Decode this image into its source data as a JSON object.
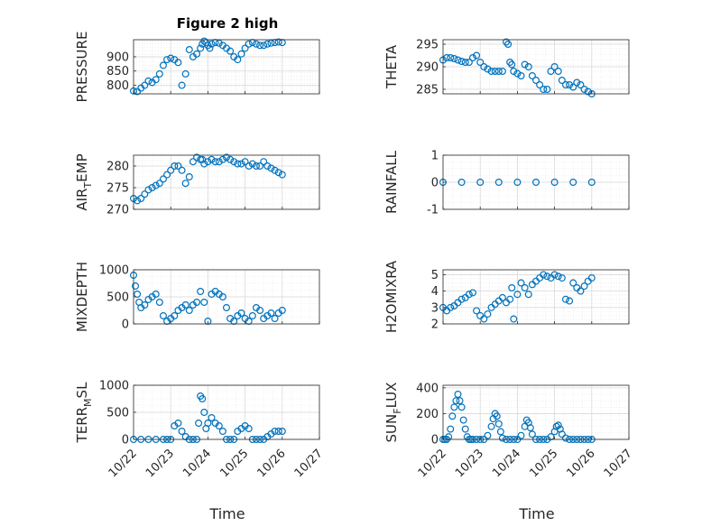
{
  "figure_title": "Figure 2 high",
  "colors": {
    "marker": "#0072BD",
    "axis": "#262626",
    "grid": "#d9d9d9",
    "minor_grid": "#e6e6e6"
  },
  "x_ticks": [
    "10/22",
    "10/23",
    "10/24",
    "10/25",
    "10/26",
    "10/27"
  ],
  "x_label": "Time",
  "chart_data": [
    {
      "type": "scatter",
      "ylabel": "PRESSURE",
      "ylim": [
        770,
        960
      ],
      "yticks": [
        800,
        850,
        900
      ],
      "grid": true,
      "x": [
        0,
        0.1,
        0.2,
        0.3,
        0.4,
        0.5,
        0.6,
        0.7,
        0.8,
        0.9,
        1,
        1.1,
        1.2,
        1.3,
        1.4,
        1.5,
        1.6,
        1.7,
        1.8,
        1.85,
        1.9,
        1.95,
        2,
        2.05,
        2.1,
        2.2,
        2.3,
        2.4,
        2.5,
        2.6,
        2.7,
        2.8,
        2.9,
        3,
        3.1,
        3.2,
        3.3,
        3.4,
        3.5,
        3.6,
        3.7,
        3.8,
        3.9,
        4
      ],
      "values": [
        780,
        778,
        790,
        800,
        815,
        810,
        820,
        840,
        870,
        890,
        895,
        890,
        880,
        800,
        840,
        925,
        900,
        910,
        930,
        945,
        955,
        950,
        940,
        930,
        945,
        950,
        948,
        940,
        930,
        920,
        900,
        890,
        910,
        930,
        945,
        950,
        945,
        940,
        940,
        945,
        948,
        950,
        952,
        950
      ]
    },
    {
      "type": "scatter",
      "ylabel": "THETA",
      "ylim": [
        284,
        296
      ],
      "yticks": [
        285,
        290,
        295
      ],
      "grid": true,
      "x": [
        0,
        0.1,
        0.2,
        0.3,
        0.4,
        0.5,
        0.6,
        0.7,
        0.8,
        0.9,
        1,
        1.1,
        1.2,
        1.3,
        1.4,
        1.5,
        1.6,
        1.7,
        1.75,
        1.8,
        1.85,
        1.9,
        2,
        2.1,
        2.2,
        2.3,
        2.4,
        2.5,
        2.6,
        2.7,
        2.8,
        2.9,
        3,
        3.1,
        3.2,
        3.3,
        3.4,
        3.5,
        3.6,
        3.7,
        3.8,
        3.9,
        4
      ],
      "values": [
        291.5,
        292,
        292,
        291.8,
        291.5,
        291.2,
        291,
        291,
        292,
        292.5,
        291,
        290,
        289.5,
        289,
        289,
        289,
        289,
        295.5,
        295,
        291,
        290.5,
        289,
        288.5,
        288,
        290.5,
        290,
        288,
        287,
        286,
        285,
        285,
        289,
        290,
        289,
        287,
        286,
        286,
        285.5,
        286.5,
        286,
        285,
        284.5,
        284
      ]
    },
    {
      "type": "scatter",
      "ylabel": "AIR_TEMP",
      "ylim": [
        270,
        282.5
      ],
      "yticks": [
        270,
        275,
        280
      ],
      "grid": true,
      "x": [
        0,
        0.1,
        0.2,
        0.3,
        0.4,
        0.5,
        0.6,
        0.7,
        0.8,
        0.9,
        1,
        1.1,
        1.2,
        1.3,
        1.4,
        1.5,
        1.6,
        1.7,
        1.8,
        1.85,
        1.9,
        2,
        2.1,
        2.2,
        2.3,
        2.4,
        2.5,
        2.6,
        2.7,
        2.8,
        2.9,
        3,
        3.1,
        3.2,
        3.3,
        3.4,
        3.5,
        3.6,
        3.7,
        3.8,
        3.9,
        4
      ],
      "values": [
        272.5,
        272,
        272.5,
        273.5,
        274.5,
        275,
        275.5,
        276,
        277,
        278,
        279,
        280,
        280,
        279,
        276,
        277.5,
        281,
        282,
        281.5,
        281.5,
        280.5,
        281,
        281.5,
        281,
        281,
        281.5,
        282,
        281.5,
        281,
        280.5,
        280.5,
        281,
        280,
        280.5,
        280,
        280,
        281,
        280,
        279.5,
        279,
        278.5,
        278
      ]
    },
    {
      "type": "scatter",
      "ylabel": "RAINFALL",
      "ylim": [
        -1,
        1
      ],
      "yticks": [
        -1,
        0,
        1
      ],
      "grid": true,
      "x": [
        0,
        0.5,
        1,
        1.5,
        2,
        2.5,
        3,
        3.5,
        4
      ],
      "values": [
        0,
        0,
        0,
        0,
        0,
        0,
        0,
        0,
        0
      ]
    },
    {
      "type": "scatter",
      "ylabel": "MIXDEPTH",
      "ylim": [
        0,
        1000
      ],
      "yticks": [
        0,
        500,
        1000
      ],
      "grid": true,
      "x": [
        0,
        0.05,
        0.1,
        0.15,
        0.2,
        0.3,
        0.4,
        0.5,
        0.6,
        0.7,
        0.8,
        0.9,
        1,
        1.1,
        1.2,
        1.3,
        1.4,
        1.5,
        1.6,
        1.7,
        1.8,
        1.9,
        2,
        2.1,
        2.2,
        2.3,
        2.4,
        2.5,
        2.6,
        2.7,
        2.8,
        2.9,
        3,
        3.1,
        3.2,
        3.3,
        3.4,
        3.5,
        3.6,
        3.7,
        3.8,
        3.9,
        4
      ],
      "values": [
        900,
        700,
        550,
        400,
        300,
        350,
        450,
        500,
        550,
        400,
        150,
        50,
        100,
        150,
        250,
        300,
        350,
        250,
        350,
        400,
        600,
        400,
        50,
        550,
        600,
        550,
        500,
        300,
        100,
        50,
        150,
        200,
        100,
        50,
        150,
        300,
        250,
        100,
        150,
        200,
        100,
        200,
        250
      ]
    },
    {
      "type": "scatter",
      "ylabel": "H2OMIXRA",
      "ylim": [
        2,
        5.3
      ],
      "yticks": [
        2,
        3,
        4,
        5
      ],
      "grid": true,
      "x": [
        0,
        0.1,
        0.2,
        0.3,
        0.4,
        0.5,
        0.6,
        0.7,
        0.8,
        0.9,
        1,
        1.1,
        1.2,
        1.3,
        1.4,
        1.5,
        1.6,
        1.7,
        1.8,
        1.85,
        1.9,
        2,
        2.1,
        2.2,
        2.3,
        2.4,
        2.5,
        2.6,
        2.7,
        2.8,
        2.9,
        3,
        3.1,
        3.2,
        3.3,
        3.4,
        3.5,
        3.6,
        3.7,
        3.8,
        3.9,
        4
      ],
      "values": [
        3,
        2.8,
        3,
        3.1,
        3.3,
        3.5,
        3.6,
        3.8,
        3.9,
        2.8,
        2.5,
        2.3,
        2.6,
        3,
        3.2,
        3.4,
        3.6,
        3.3,
        3.5,
        4.2,
        2.3,
        3.8,
        4.5,
        4.2,
        3.8,
        4.4,
        4.6,
        4.8,
        5,
        4.9,
        4.8,
        5,
        4.9,
        4.8,
        3.5,
        3.4,
        4.5,
        4.2,
        4,
        4.3,
        4.6,
        4.8
      ]
    },
    {
      "type": "scatter",
      "ylabel": "TERR_MSL",
      "ylim": [
        0,
        1000
      ],
      "yticks": [
        0,
        500,
        1000
      ],
      "grid": true,
      "x": [
        0,
        0.2,
        0.4,
        0.6,
        0.8,
        0.9,
        1,
        1.1,
        1.2,
        1.3,
        1.4,
        1.5,
        1.6,
        1.7,
        1.75,
        1.8,
        1.85,
        1.9,
        1.95,
        2,
        2.1,
        2.2,
        2.3,
        2.4,
        2.5,
        2.6,
        2.7,
        2.8,
        2.9,
        3,
        3.1,
        3.2,
        3.3,
        3.4,
        3.5,
        3.6,
        3.7,
        3.8,
        3.9,
        4
      ],
      "values": [
        0,
        0,
        0,
        0,
        0,
        0,
        0,
        250,
        300,
        150,
        50,
        0,
        0,
        0,
        300,
        800,
        750,
        500,
        200,
        300,
        400,
        300,
        250,
        150,
        0,
        0,
        0,
        150,
        200,
        250,
        200,
        0,
        0,
        0,
        0,
        50,
        100,
        150,
        150,
        150
      ]
    },
    {
      "type": "scatter",
      "ylabel": "SUN_FLUX",
      "ylim": [
        0,
        420
      ],
      "yticks": [
        0,
        200,
        400
      ],
      "grid": true,
      "x": [
        0,
        0.05,
        0.1,
        0.15,
        0.2,
        0.25,
        0.3,
        0.35,
        0.4,
        0.45,
        0.5,
        0.55,
        0.6,
        0.65,
        0.7,
        0.75,
        0.8,
        0.9,
        1,
        1.1,
        1.2,
        1.3,
        1.35,
        1.4,
        1.45,
        1.5,
        1.55,
        1.6,
        1.7,
        1.8,
        1.9,
        2,
        2.1,
        2.2,
        2.25,
        2.3,
        2.35,
        2.4,
        2.5,
        2.6,
        2.7,
        2.8,
        2.9,
        3,
        3.05,
        3.1,
        3.15,
        3.2,
        3.3,
        3.4,
        3.5,
        3.6,
        3.7,
        3.8,
        3.9,
        4
      ],
      "values": [
        0,
        0,
        0,
        20,
        80,
        180,
        250,
        300,
        350,
        300,
        250,
        150,
        80,
        20,
        0,
        0,
        0,
        0,
        0,
        0,
        30,
        100,
        160,
        200,
        180,
        120,
        60,
        10,
        0,
        0,
        0,
        0,
        30,
        100,
        150,
        130,
        90,
        40,
        0,
        0,
        0,
        0,
        20,
        60,
        100,
        110,
        80,
        40,
        10,
        0,
        0,
        0,
        0,
        0,
        0,
        0
      ]
    }
  ]
}
